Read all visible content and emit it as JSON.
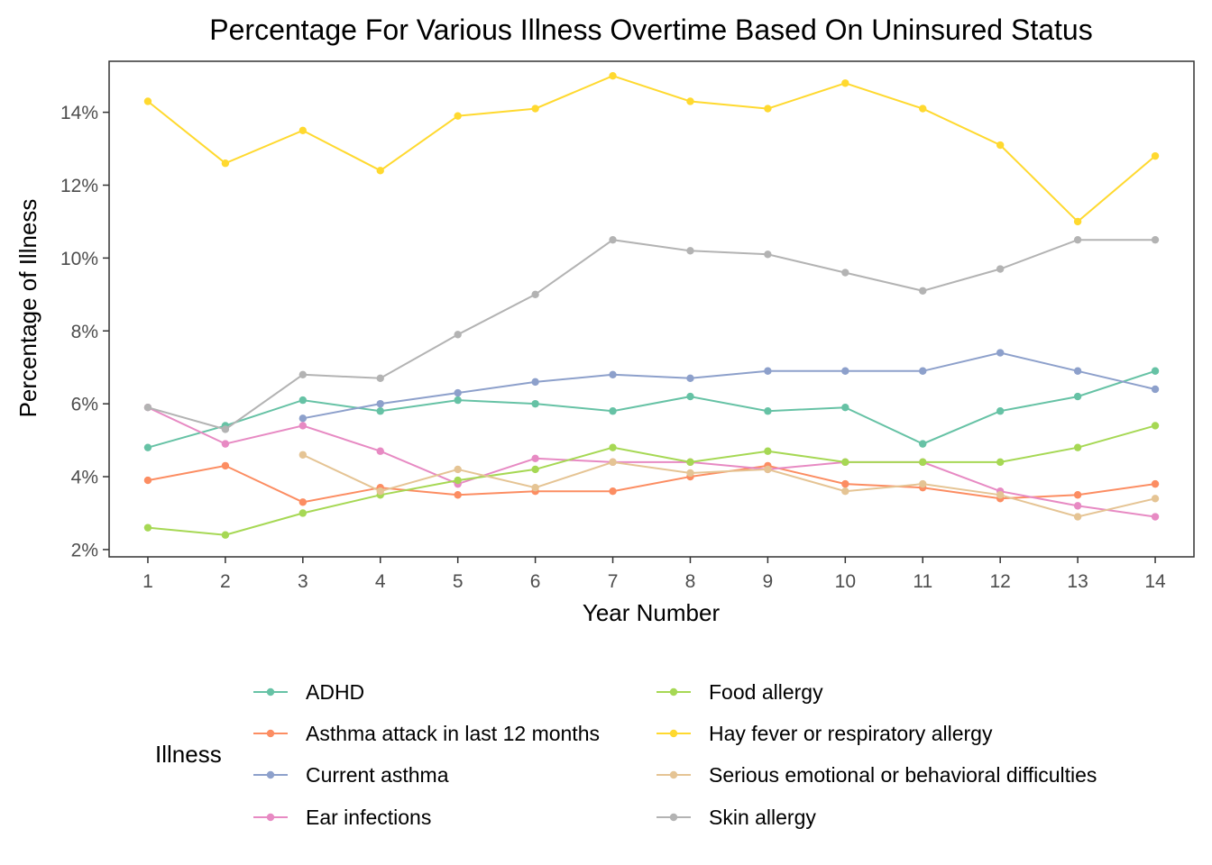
{
  "chart_data": {
    "type": "line",
    "title": "Percentage For Various Illness Overtime Based On Uninsured Status",
    "xlabel": "Year Number",
    "ylabel": "Percentage of Illness",
    "x": [
      1,
      2,
      3,
      4,
      5,
      6,
      7,
      8,
      9,
      10,
      11,
      12,
      13,
      14
    ],
    "xlim": [
      0.5,
      14.5
    ],
    "ylim": [
      1.8,
      15.4
    ],
    "y_ticks": [
      2,
      4,
      6,
      8,
      10,
      12,
      14
    ],
    "y_tick_labels": [
      "2%",
      "4%",
      "6%",
      "8%",
      "10%",
      "12%",
      "14%"
    ],
    "x_tick_labels": [
      "1",
      "2",
      "3",
      "4",
      "5",
      "6",
      "7",
      "8",
      "9",
      "10",
      "11",
      "12",
      "13",
      "14"
    ],
    "grid": false,
    "legend": {
      "title": "Illness",
      "position": "bottom",
      "columns": 2
    },
    "series": [
      {
        "name": "ADHD",
        "color": "#66c2a5",
        "values": [
          4.8,
          5.4,
          6.1,
          5.8,
          6.1,
          6.0,
          5.8,
          6.2,
          5.8,
          5.9,
          4.9,
          5.8,
          6.2,
          6.9
        ]
      },
      {
        "name": "Asthma attack in last 12 months",
        "color": "#fc8d62",
        "values": [
          3.9,
          4.3,
          3.3,
          3.7,
          3.5,
          3.6,
          3.6,
          4.0,
          4.3,
          3.8,
          3.7,
          3.4,
          3.5,
          3.8
        ]
      },
      {
        "name": "Current asthma",
        "color": "#8da0cb",
        "values": [
          null,
          null,
          5.6,
          6.0,
          6.3,
          6.6,
          6.8,
          6.7,
          6.9,
          6.9,
          6.9,
          7.4,
          6.9,
          6.4
        ]
      },
      {
        "name": "Ear infections",
        "color": "#e78ac3",
        "values": [
          5.9,
          4.9,
          5.4,
          4.7,
          3.8,
          4.5,
          4.4,
          4.4,
          4.2,
          4.4,
          4.4,
          3.6,
          3.2,
          2.9
        ]
      },
      {
        "name": "Food allergy",
        "color": "#a6d854",
        "values": [
          2.6,
          2.4,
          3.0,
          3.5,
          3.9,
          4.2,
          4.8,
          4.4,
          4.7,
          4.4,
          4.4,
          4.4,
          4.8,
          5.4
        ]
      },
      {
        "name": "Hay fever or respiratory allergy",
        "color": "#ffd92f",
        "values": [
          14.3,
          12.6,
          13.5,
          12.4,
          13.9,
          14.1,
          15.0,
          14.3,
          14.1,
          14.8,
          14.1,
          13.1,
          11.0,
          12.8
        ]
      },
      {
        "name": "Serious emotional or behavioral difficulties",
        "color": "#e5c494",
        "values": [
          null,
          null,
          4.6,
          3.6,
          4.2,
          3.7,
          4.4,
          4.1,
          4.2,
          3.6,
          3.8,
          3.5,
          2.9,
          3.4
        ]
      },
      {
        "name": "Skin allergy",
        "color": "#b3b3b3",
        "values": [
          5.9,
          5.3,
          6.8,
          6.7,
          7.9,
          9.0,
          10.5,
          10.2,
          10.1,
          9.6,
          9.1,
          9.7,
          10.5,
          10.5
        ]
      }
    ]
  }
}
